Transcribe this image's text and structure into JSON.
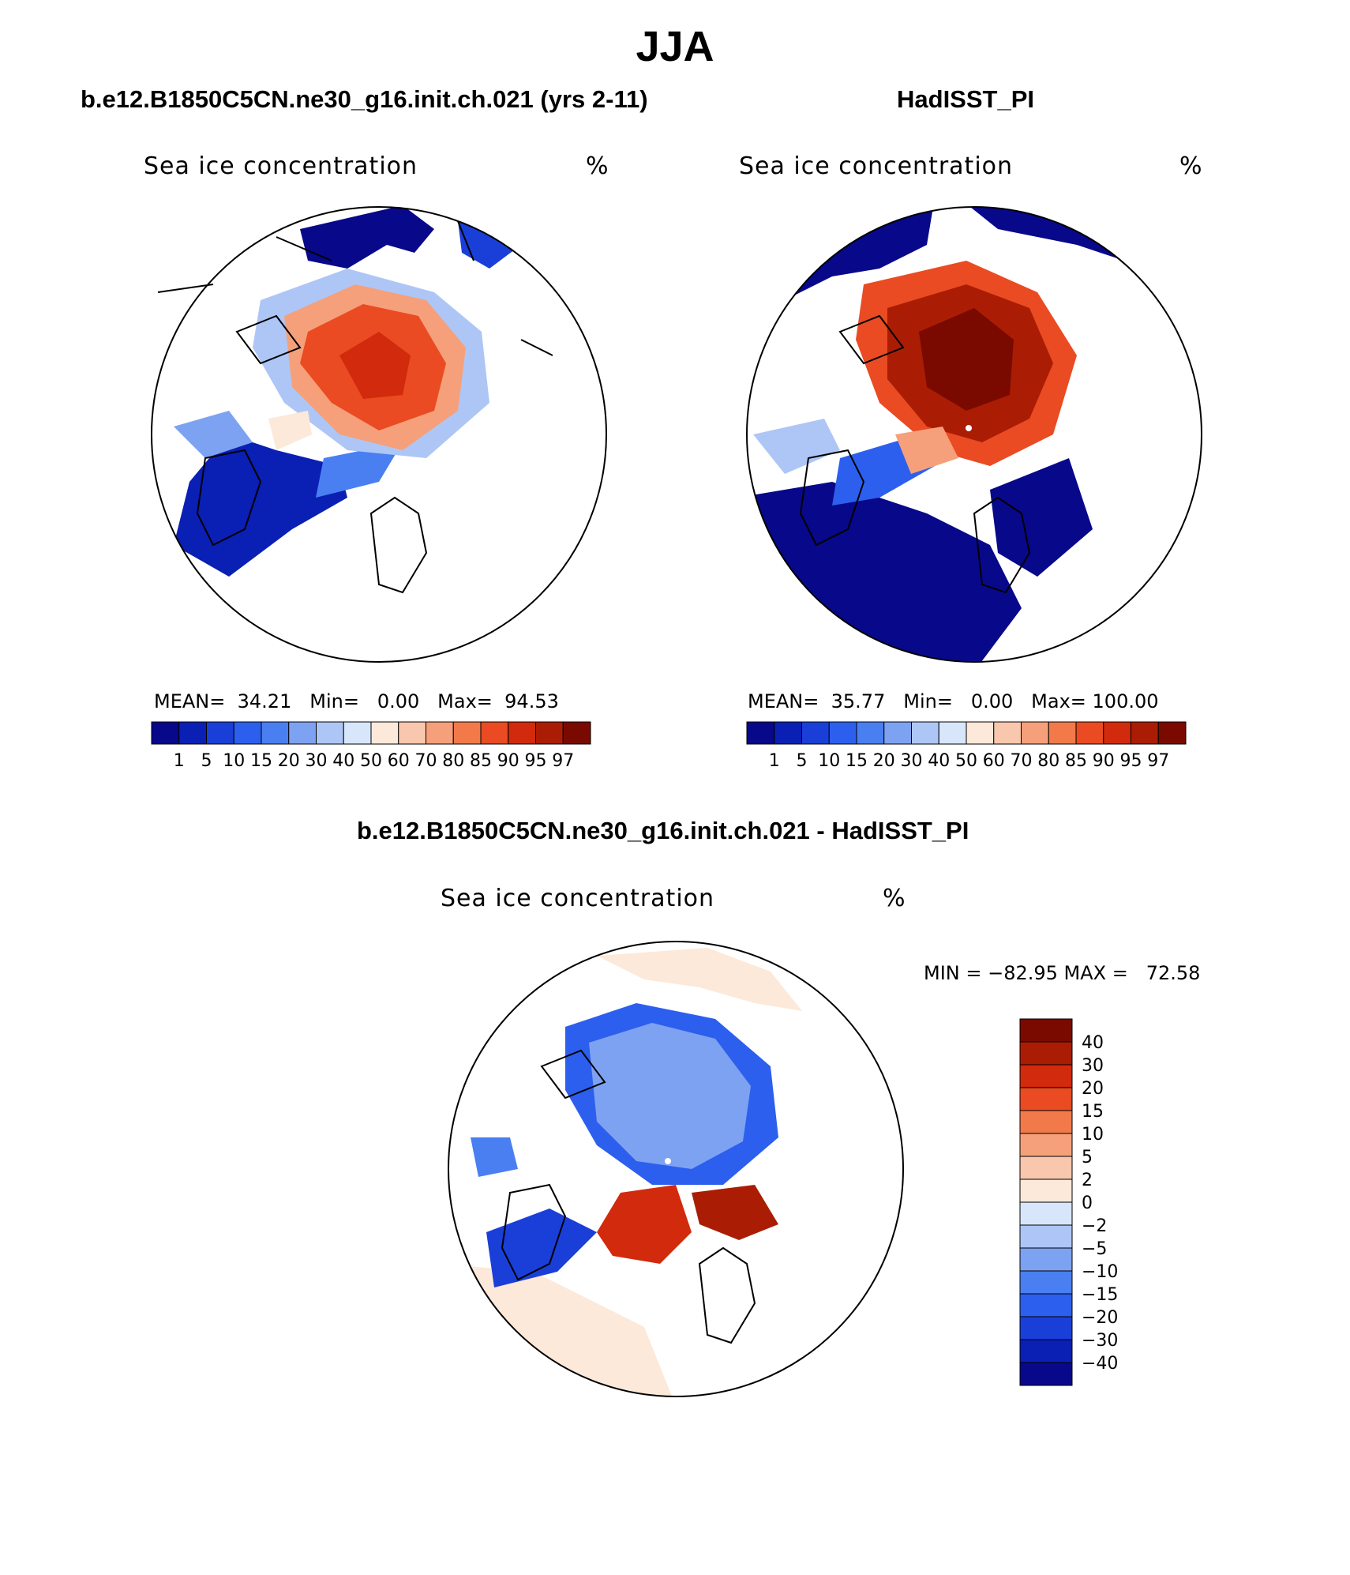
{
  "main_title": "JJA",
  "panels": [
    {
      "case_title": "b.e12.B1850C5CN.ne30_g16.init.ch.021 (yrs 2-11)",
      "plot_title": "Sea ice concentration",
      "units": "%",
      "stats": {
        "mean_label": "MEAN=",
        "mean": "34.21",
        "min_label": "Min=",
        "min": "0.00",
        "max_label": "Max=",
        "max": "94.53"
      }
    },
    {
      "case_title": "HadISST_PI",
      "plot_title": "Sea ice concentration",
      "units": "%",
      "stats": {
        "mean_label": "MEAN=",
        "mean": "35.77",
        "min_label": "Min=",
        "min": "0.00",
        "max_label": "Max=",
        "max": "100.00"
      }
    }
  ],
  "diff_panel": {
    "title": "b.e12.B1850C5CN.ne30_g16.init.ch.021 - HadISST_PI",
    "plot_title": "Sea ice concentration",
    "units": "%",
    "minmax": "MIN = −82.95 MAX =   72.58"
  },
  "colorbar_levels": [
    "1",
    "5",
    "10",
    "15",
    "20",
    "30",
    "40",
    "50",
    "60",
    "70",
    "80",
    "85",
    "90",
    "95",
    "97"
  ],
  "colorbar_colors": [
    "#08088a",
    "#0a1fb4",
    "#1a3fd8",
    "#2d5fee",
    "#4a7ff2",
    "#7ea2f2",
    "#aec6f6",
    "#d8e6fb",
    "#fde9d9",
    "#f9c7ad",
    "#f5a07a",
    "#f27a4a",
    "#ea4b22",
    "#d22a0c",
    "#aa1d04",
    "#7a0a00"
  ],
  "diff_levels": [
    "40",
    "30",
    "20",
    "15",
    "10",
    "5",
    "2",
    "0",
    "−2",
    "−5",
    "−10",
    "−15",
    "−20",
    "−30",
    "−40"
  ],
  "diff_colors": [
    "#7a0a00",
    "#aa1d04",
    "#d22a0c",
    "#ea4b22",
    "#f27a4a",
    "#f5a07a",
    "#f9c7ad",
    "#fde9d9",
    "#d8e6fb",
    "#aec6f6",
    "#7ea2f2",
    "#4a7ff2",
    "#2d5fee",
    "#1a3fd8",
    "#0a1fb4",
    "#08088a"
  ]
}
